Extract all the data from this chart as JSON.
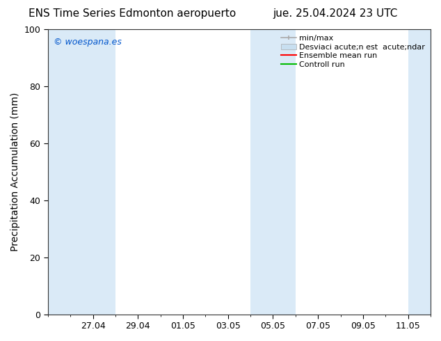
{
  "title_left": "ENS Time Series Edmonton aeropuerto",
  "title_right": "jue. 25.04.2024 23 UTC",
  "ylabel": "Precipitation Accumulation (mm)",
  "ylim": [
    0,
    100
  ],
  "yticks": [
    0,
    20,
    40,
    60,
    80,
    100
  ],
  "xtick_labels": [
    "27.04",
    "29.04",
    "01.05",
    "03.05",
    "05.05",
    "07.05",
    "09.05",
    "11.05"
  ],
  "bg_color": "#ffffff",
  "plot_bg_color": "#ffffff",
  "band_color": "#daeaf7",
  "watermark_text": "© woespana.es",
  "watermark_color": "#0055cc",
  "legend_label_minmax": "min/max",
  "legend_label_desv": "Desviaci acute;n est  acute;ndar",
  "legend_label_ens": "Ensemble mean run",
  "legend_label_ctrl": "Controll run",
  "legend_color_minmax": "#aaaaaa",
  "legend_color_desv": "#c8dff0",
  "legend_color_ens": "#ff0000",
  "legend_color_ctrl": "#00bb00",
  "title_fontsize": 11,
  "axis_fontsize": 10,
  "tick_fontsize": 9,
  "legend_fontsize": 8
}
